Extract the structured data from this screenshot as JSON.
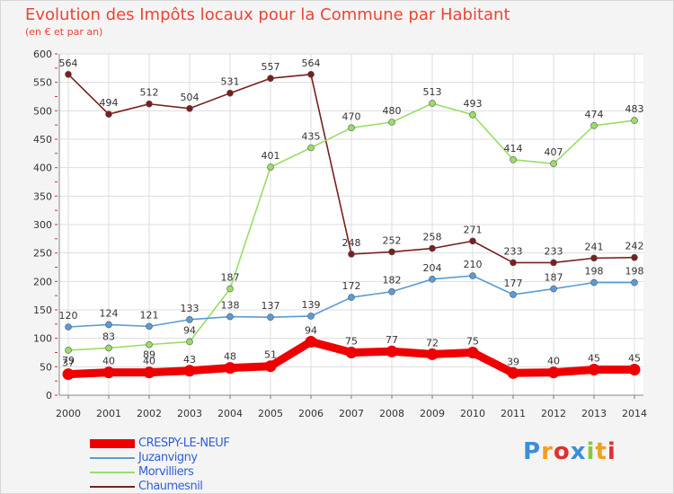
{
  "title": "Evolution des Impôts locaux pour la Commune par Habitant",
  "subtitle": "(en € et par an)",
  "logo": "Proxiti",
  "chart_data": {
    "type": "line",
    "title": "Evolution des Impôts locaux pour la Commune par Habitant",
    "subtitle": "(en € et par an)",
    "x": [
      "2000",
      "2001",
      "2002",
      "2003",
      "2004",
      "2005",
      "2006",
      "2007",
      "2008",
      "2009",
      "2010",
      "2011",
      "2012",
      "2013",
      "2014"
    ],
    "ylim": [
      0,
      600
    ],
    "yticks": [
      0,
      50,
      100,
      150,
      200,
      250,
      300,
      350,
      400,
      450,
      500,
      550,
      600
    ],
    "grid": true,
    "legend_position": "bottom-left",
    "series": [
      {
        "name": "CRESPY-LE-NEUF",
        "color": "#ee0000",
        "values": [
          37,
          40,
          40,
          43,
          48,
          51,
          94,
          75,
          77,
          72,
          75,
          39,
          40,
          45,
          45
        ]
      },
      {
        "name": "Juzanvigny",
        "color": "#5a9bd5",
        "values": [
          120,
          124,
          121,
          133,
          138,
          137,
          139,
          172,
          182,
          204,
          210,
          177,
          187,
          198,
          198
        ]
      },
      {
        "name": "Morvilliers",
        "color": "#99dd66",
        "values": [
          79,
          83,
          89,
          94,
          187,
          401,
          435,
          470,
          480,
          513,
          493,
          414,
          407,
          474,
          483
        ]
      },
      {
        "name": "Chaumesnil",
        "color": "#7a1f1f",
        "values": [
          564,
          494,
          512,
          504,
          531,
          557,
          564,
          248,
          252,
          258,
          271,
          233,
          233,
          241,
          242
        ]
      }
    ]
  }
}
